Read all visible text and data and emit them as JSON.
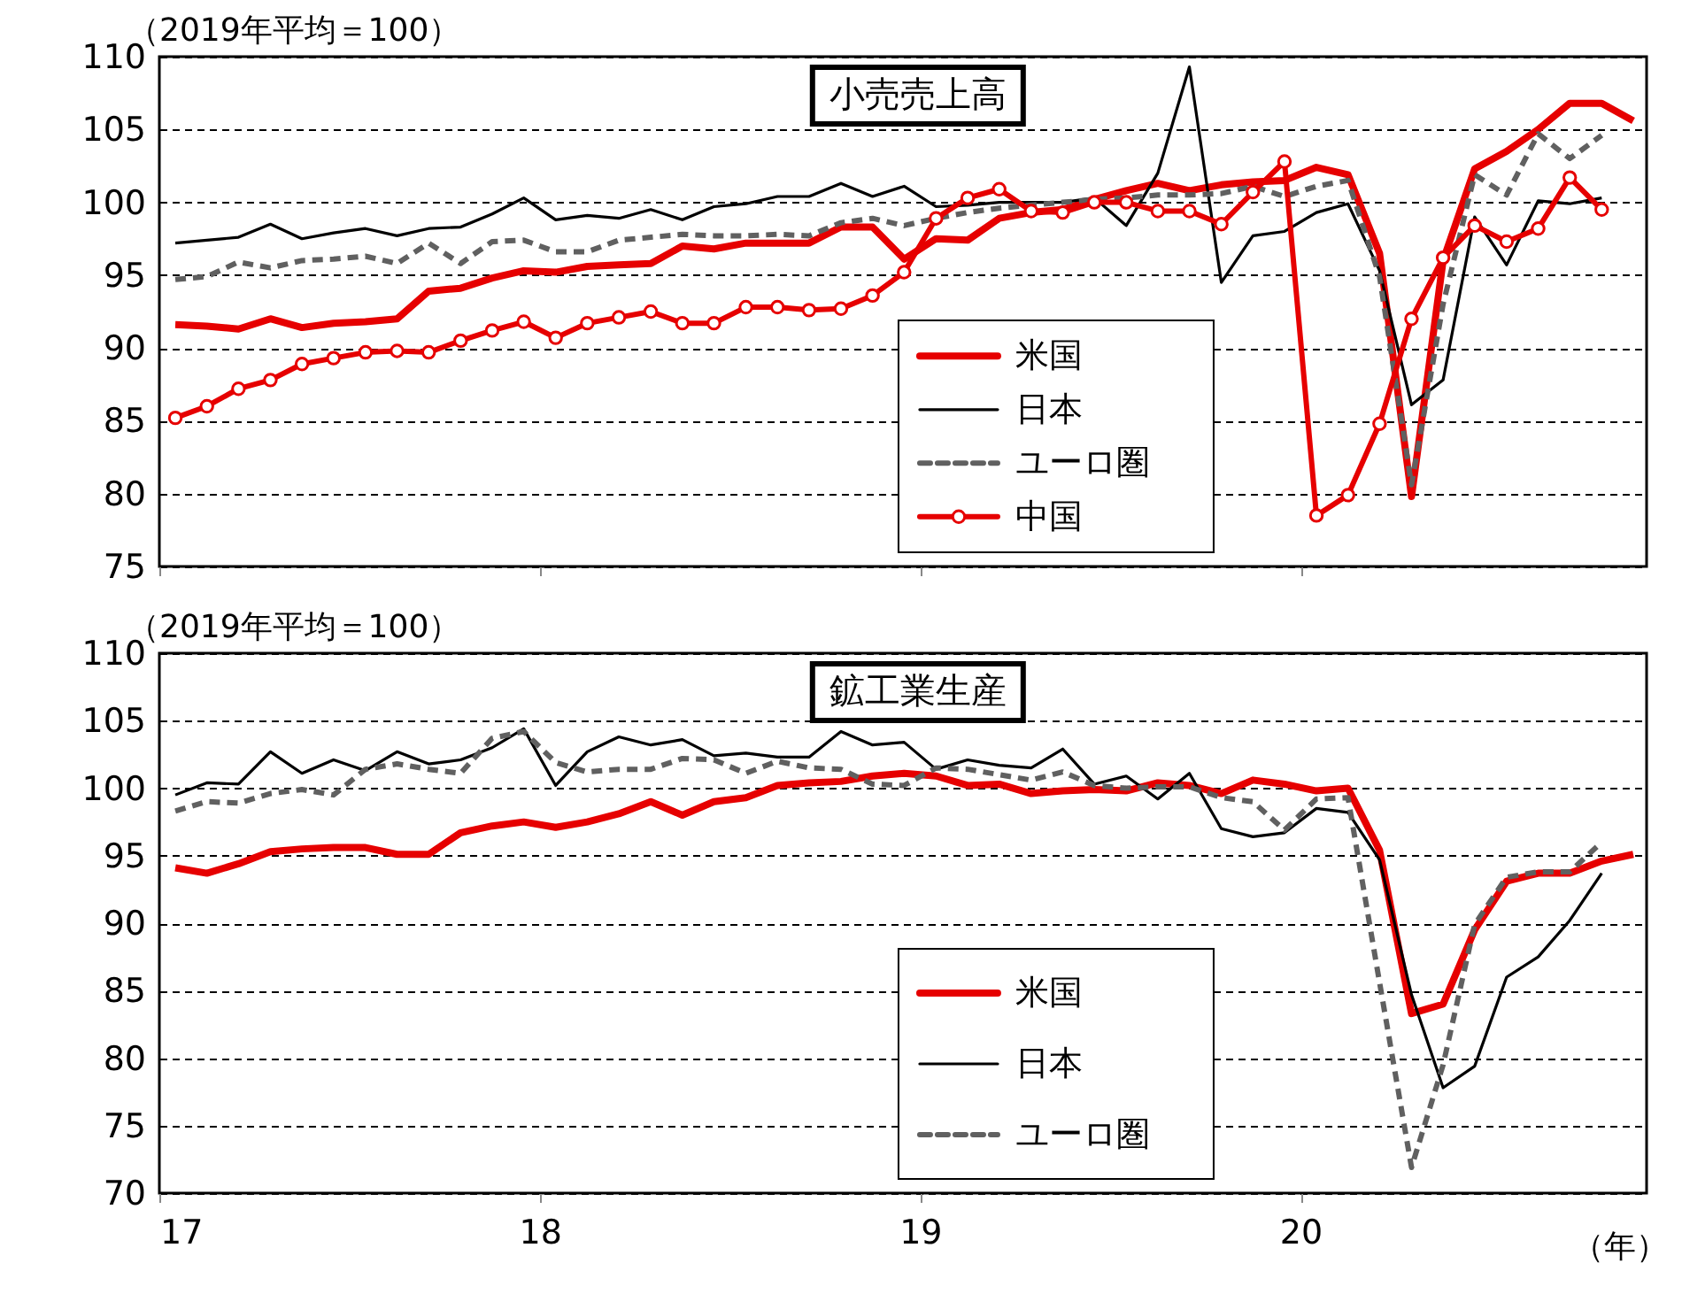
{
  "chart_data": [
    {
      "type": "line",
      "title": "小売売上高",
      "ylabel": "（2019年平均＝100）",
      "x": [
        17.042,
        17.125,
        17.208,
        17.292,
        17.375,
        17.458,
        17.542,
        17.625,
        17.708,
        17.792,
        17.875,
        17.958,
        18.042,
        18.125,
        18.208,
        18.292,
        18.375,
        18.458,
        18.542,
        18.625,
        18.708,
        18.792,
        18.875,
        18.958,
        19.042,
        19.125,
        19.208,
        19.292,
        19.375,
        19.458,
        19.542,
        19.625,
        19.708,
        19.792,
        19.875,
        19.958,
        20.042,
        20.125,
        20.208,
        20.292,
        20.375,
        20.458,
        20.542,
        20.625,
        20.708,
        20.792,
        20.875
      ],
      "xlim": [
        17,
        20.91
      ],
      "xticks": [
        17,
        18,
        19,
        20
      ],
      "ylim": [
        75,
        110
      ],
      "yticks": [
        75,
        80,
        85,
        90,
        95,
        100,
        105,
        110
      ],
      "grid": "y",
      "legend": "bottom",
      "tick_labels": "y",
      "series": [
        {
          "name": "米国",
          "color": "#e60000",
          "line_style": "solid",
          "values": [
            91.6,
            91.5,
            91.3,
            92.0,
            91.4,
            91.7,
            91.8,
            92.0,
            93.9,
            94.1,
            94.8,
            95.3,
            95.2,
            95.6,
            95.7,
            95.8,
            97.0,
            96.8,
            97.2,
            97.2,
            97.2,
            98.3,
            98.3,
            96.1,
            97.5,
            97.4,
            98.9,
            99.3,
            99.5,
            100.2,
            100.8,
            101.3,
            100.8,
            101.2,
            101.4,
            101.5,
            102.4,
            101.9,
            96.5,
            79.8,
            96.0,
            102.3,
            103.5,
            105.0,
            106.8,
            106.8,
            105.6
          ]
        },
        {
          "name": "日本",
          "color": "#000000",
          "line_style": "solid",
          "values": [
            97.2,
            97.4,
            97.6,
            98.5,
            97.5,
            97.9,
            98.2,
            97.7,
            98.2,
            98.3,
            99.2,
            100.3,
            98.8,
            99.1,
            98.9,
            99.5,
            98.8,
            99.7,
            99.9,
            100.4,
            100.4,
            101.3,
            100.4,
            101.1,
            99.7,
            99.8,
            100.0,
            100.0,
            100.0,
            100.3,
            98.4,
            102.0,
            109.3,
            94.5,
            97.7,
            98.0,
            99.3,
            99.9,
            95.3,
            86.1,
            87.8,
            99.0,
            95.7,
            100.1,
            99.9,
            100.3,
            null
          ]
        },
        {
          "name": "ユーロ圏",
          "color": "#606060",
          "line_style": "dashed",
          "values": [
            94.7,
            94.9,
            95.9,
            95.5,
            96.0,
            96.1,
            96.3,
            95.8,
            97.2,
            95.8,
            97.3,
            97.4,
            96.6,
            96.6,
            97.4,
            97.6,
            97.8,
            97.7,
            97.7,
            97.8,
            97.7,
            98.6,
            98.9,
            98.4,
            98.9,
            99.3,
            99.6,
            99.8,
            100.0,
            100.2,
            100.3,
            100.5,
            100.5,
            100.6,
            101.1,
            100.4,
            101.1,
            101.5,
            94.9,
            80.6,
            93.0,
            101.9,
            100.5,
            104.7,
            103.0,
            104.6,
            null
          ]
        },
        {
          "name": "中国",
          "color": "#e60000",
          "line_style": "solid",
          "marker": "circle",
          "values": [
            85.2,
            86.0,
            87.2,
            87.8,
            88.9,
            89.3,
            89.7,
            89.8,
            89.7,
            90.5,
            91.2,
            91.8,
            90.7,
            91.7,
            92.1,
            92.5,
            91.7,
            91.7,
            92.8,
            92.8,
            92.6,
            92.7,
            93.6,
            95.2,
            98.9,
            100.3,
            100.9,
            99.4,
            99.3,
            100.0,
            100.0,
            99.4,
            99.4,
            98.5,
            100.7,
            102.8,
            78.5,
            79.9,
            84.8,
            92.0,
            96.2,
            98.4,
            97.3,
            98.2,
            101.7,
            99.5,
            null
          ]
        }
      ]
    },
    {
      "type": "line",
      "title": "鉱工業生産",
      "ylabel": "（2019年平均＝100）",
      "xlabel": "（年）",
      "x": [
        17.042,
        17.125,
        17.208,
        17.292,
        17.375,
        17.458,
        17.542,
        17.625,
        17.708,
        17.792,
        17.875,
        17.958,
        18.042,
        18.125,
        18.208,
        18.292,
        18.375,
        18.458,
        18.542,
        18.625,
        18.708,
        18.792,
        18.875,
        18.958,
        19.042,
        19.125,
        19.208,
        19.292,
        19.375,
        19.458,
        19.542,
        19.625,
        19.708,
        19.792,
        19.875,
        19.958,
        20.042,
        20.125,
        20.208,
        20.292,
        20.375,
        20.458,
        20.542,
        20.625,
        20.708,
        20.792,
        20.875
      ],
      "xlim": [
        17,
        20.91
      ],
      "xticks": [
        17,
        18,
        19,
        20
      ],
      "ylim": [
        70,
        110
      ],
      "yticks": [
        70,
        75,
        80,
        85,
        90,
        95,
        100,
        105,
        110
      ],
      "grid": "y",
      "legend": "bottom",
      "series": [
        {
          "name": "米国",
          "color": "#e60000",
          "line_style": "solid",
          "values": [
            94.1,
            93.7,
            94.4,
            95.3,
            95.5,
            95.6,
            95.6,
            95.1,
            95.1,
            96.7,
            97.2,
            97.5,
            97.1,
            97.5,
            98.1,
            99.0,
            98.0,
            99.0,
            99.3,
            100.2,
            100.4,
            100.5,
            100.9,
            101.1,
            100.9,
            100.2,
            100.3,
            99.6,
            99.8,
            99.9,
            99.8,
            100.4,
            100.2,
            99.6,
            100.6,
            100.3,
            99.8,
            100.0,
            95.4,
            83.3,
            84.0,
            89.5,
            93.1,
            93.7,
            93.7,
            94.6,
            95.1
          ]
        },
        {
          "name": "日本",
          "color": "#000000",
          "line_style": "solid",
          "values": [
            99.5,
            100.4,
            100.3,
            102.7,
            101.1,
            102.1,
            101.3,
            102.7,
            101.8,
            102.1,
            103.0,
            104.4,
            100.2,
            102.7,
            103.8,
            103.2,
            103.6,
            102.4,
            102.6,
            102.3,
            102.3,
            104.2,
            103.2,
            103.4,
            101.4,
            102.1,
            101.7,
            101.5,
            102.9,
            100.3,
            100.9,
            99.2,
            101.1,
            97.0,
            96.4,
            96.7,
            98.5,
            98.2,
            94.7,
            84.7,
            77.8,
            79.4,
            86.0,
            87.5,
            90.2,
            93.7,
            null
          ]
        },
        {
          "name": "ユーロ圏",
          "color": "#606060",
          "line_style": "dashed",
          "values": [
            98.3,
            99.0,
            98.9,
            99.6,
            99.9,
            99.5,
            101.4,
            101.8,
            101.4,
            101.1,
            103.7,
            104.2,
            101.9,
            101.2,
            101.4,
            101.4,
            102.2,
            102.1,
            101.1,
            102.0,
            101.5,
            101.4,
            100.3,
            100.2,
            101.5,
            101.4,
            101.0,
            100.6,
            101.2,
            100.2,
            100.0,
            100.1,
            100.1,
            99.3,
            99.0,
            96.9,
            99.2,
            99.3,
            85.6,
            71.9,
            79.5,
            89.9,
            93.4,
            93.8,
            93.8,
            96.0,
            null
          ]
        }
      ]
    }
  ]
}
